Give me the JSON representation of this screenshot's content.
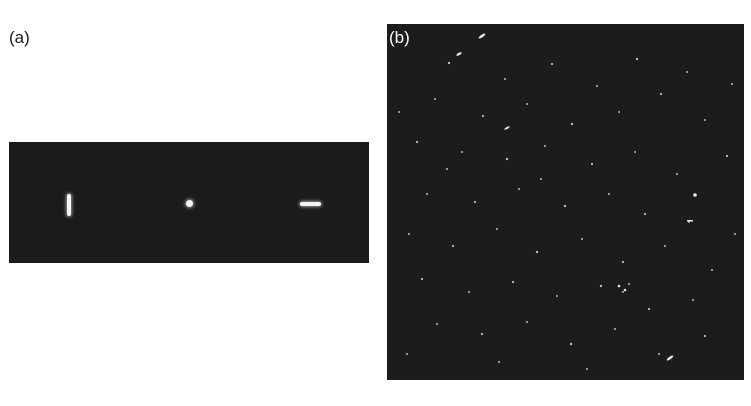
{
  "panels": {
    "a": {
      "label": "(a)"
    },
    "b": {
      "label": "(b)"
    }
  },
  "colors": {
    "background": "#ffffff",
    "panel_dark": "#1b1b1b",
    "spot": "#f4f4f4"
  }
}
